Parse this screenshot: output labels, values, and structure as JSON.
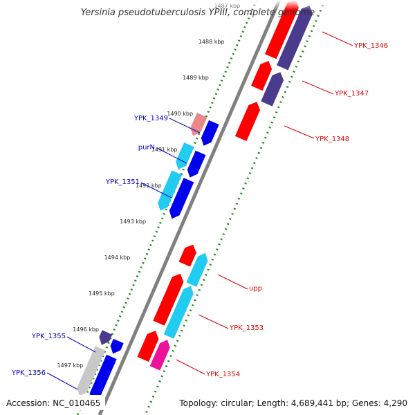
{
  "title": "Yersinia pseudotuberculosis YPIII, complete genome",
  "footer": {
    "accession": "Accession: NC_010465",
    "summary": "Topology: circular; Length: 4,689,441 bp; Genes: 4,290"
  },
  "ticks": [
    {
      "label": "1487 kbp",
      "faded": true
    },
    {
      "label": "1488 kbp"
    },
    {
      "label": "1489 kbp"
    },
    {
      "label": "1490 kbp"
    },
    {
      "label": "1491 kbp"
    },
    {
      "label": "1492 kbp"
    },
    {
      "label": "1493 kbp"
    },
    {
      "label": "1494 kbp"
    },
    {
      "label": "1495 kbp"
    },
    {
      "label": "1496 kbp"
    },
    {
      "label": "1497 kbp"
    }
  ],
  "gene_labels_left": [
    {
      "name": "YPK_1349",
      "color": "#0000cc"
    },
    {
      "name": "purN",
      "color": "#0000cc"
    },
    {
      "name": "YPK_1351",
      "color": "#0000cc"
    },
    {
      "name": "YPK_1355",
      "color": "#0000cc"
    },
    {
      "name": "YPK_1356",
      "color": "#0000cc"
    }
  ],
  "gene_labels_right": [
    {
      "name": "YPK_1346",
      "color": "#dd0000"
    },
    {
      "name": "YPK_1347",
      "color": "#dd0000"
    },
    {
      "name": "YPK_1348",
      "color": "#dd0000"
    },
    {
      "name": "upp",
      "color": "#dd0000"
    },
    {
      "name": "YPK_1353",
      "color": "#dd0000"
    },
    {
      "name": "YPK_1354",
      "color": "#dd0000"
    }
  ],
  "colors": {
    "red": "#ff0000",
    "blue": "#0000ee",
    "cyan": "#22ccf0",
    "navy": "#4b3b8c",
    "pink_light": "#e88888",
    "magenta": "#ee1199",
    "gray": "#c8c8c8",
    "backbone": "#808080",
    "tick_green": "#1a8a1a"
  }
}
